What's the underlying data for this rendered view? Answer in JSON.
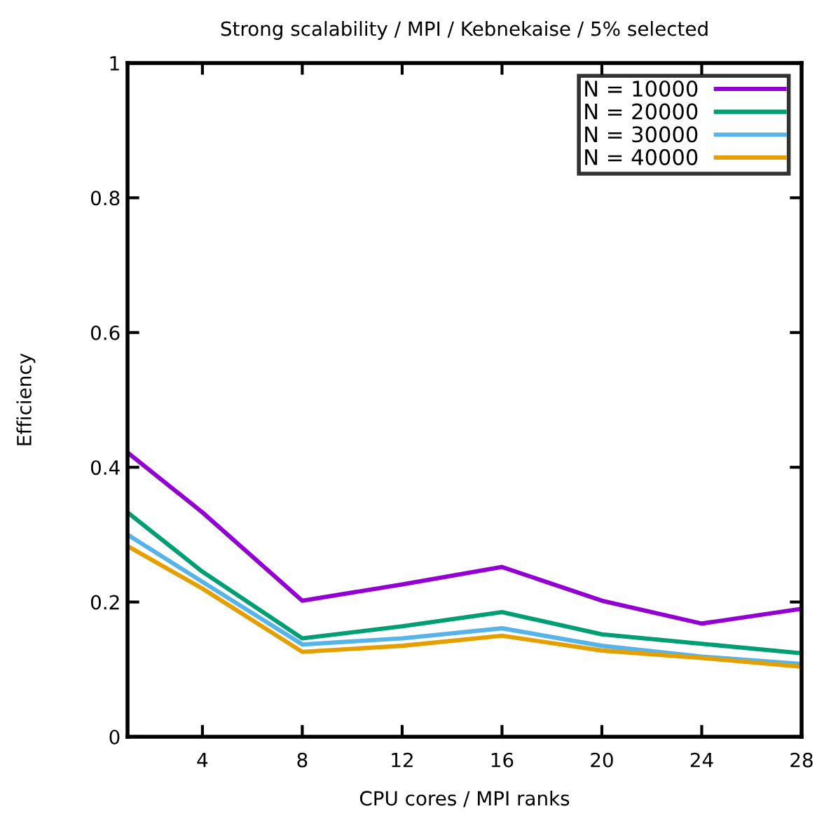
{
  "chart_data": {
    "type": "line",
    "title": "Strong scalability / MPI / Kebnekaise / 5% selected",
    "xlabel": "CPU cores / MPI ranks",
    "ylabel": "Efficiency",
    "x": [
      1,
      4,
      8,
      12,
      16,
      20,
      24,
      28
    ],
    "series": [
      {
        "name": "N = 10000",
        "color": "#9400d3",
        "values": [
          0.422,
          0.333,
          0.202,
          0.226,
          0.252,
          0.202,
          0.168,
          0.19
        ]
      },
      {
        "name": "N = 20000",
        "color": "#009e73",
        "values": [
          0.333,
          0.245,
          0.146,
          0.164,
          0.185,
          0.152,
          0.138,
          0.124
        ]
      },
      {
        "name": "N = 30000",
        "color": "#56b4e9",
        "values": [
          0.3,
          0.23,
          0.137,
          0.146,
          0.161,
          0.135,
          0.119,
          0.108
        ]
      },
      {
        "name": "N = 40000",
        "color": "#e69f00",
        "values": [
          0.283,
          0.22,
          0.126,
          0.135,
          0.15,
          0.128,
          0.117,
          0.104
        ]
      }
    ],
    "xlim": [
      1,
      28
    ],
    "xticks": [
      4,
      8,
      12,
      16,
      20,
      24,
      28
    ],
    "ylim": [
      0,
      1
    ],
    "yticks": [
      0,
      0.2,
      0.4,
      0.6,
      0.8,
      1
    ],
    "legend": "top right",
    "grid": false,
    "marker": "none",
    "line_style": "solid"
  }
}
